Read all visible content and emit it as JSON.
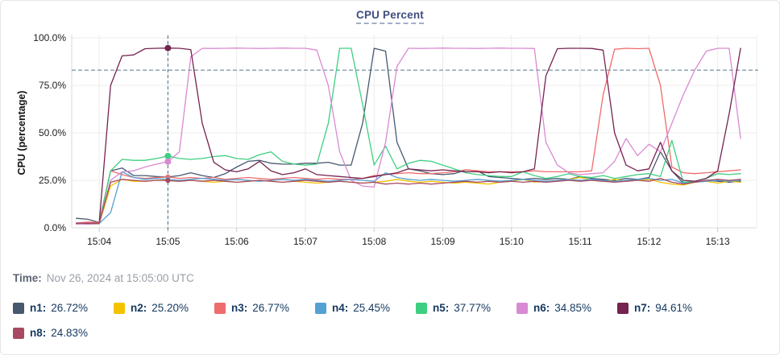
{
  "title": "CPU Percent",
  "tooltip": {
    "time_label": "Time:",
    "time_value": "Nov 26, 2024 at 15:05:00 UTC"
  },
  "colors": {
    "title": "#3f4e7d",
    "threshold": "#53788e",
    "crosshair": "#53788e",
    "grid": "#ececec",
    "axis": "#d9d9d9",
    "tick_mark": "#cbcbcb",
    "tick_text": "#1c1c1c",
    "axis_title_text": "#111111",
    "legend_text": "#163a61"
  },
  "chart_data": {
    "type": "line",
    "title": "CPU Percent",
    "xlabel": "",
    "ylabel": "CPU (percentage)",
    "ylim": [
      0,
      100
    ],
    "grid": true,
    "legend_position": "bottom",
    "y_tick_values": [
      0,
      25,
      50,
      75,
      100
    ],
    "y_tick_labels": [
      "0.0%",
      "25.0%",
      "50.0%",
      "75.0%",
      "100.0%"
    ],
    "x_tick_labels": [
      "15:04",
      "15:05",
      "15:06",
      "15:07",
      "15:08",
      "15:09",
      "15:10",
      "15:11",
      "15:12",
      "15:13"
    ],
    "x_domain": [
      "15:03:36",
      "15:13:34"
    ],
    "start_time": "15:03:40",
    "interval_seconds": 10,
    "threshold_value": 83,
    "crosshair_time": "15:05:00",
    "series": [
      {
        "name": "n1",
        "color": "#47586f",
        "emphasis": false,
        "values": [
          5,
          4.5,
          2.8,
          30,
          31.5,
          27.5,
          27.5,
          27,
          26.72,
          27.5,
          29,
          27.5,
          26.5,
          28.5,
          32,
          35,
          35.5,
          34,
          33.5,
          33.5,
          34,
          34,
          34.5,
          33,
          33,
          55,
          94.5,
          93,
          45,
          31,
          30,
          28.5,
          28,
          28.5,
          30.5,
          30,
          27,
          26.5,
          26,
          25.5,
          26,
          25.5,
          26,
          25.5,
          27,
          26,
          25.5,
          25,
          26,
          25.5,
          26.5,
          40,
          30,
          23.5,
          24,
          25,
          24.5,
          24,
          24.5
        ]
      },
      {
        "name": "n2",
        "color": "#f4c300",
        "emphasis": false,
        "values": [
          2,
          2.2,
          2,
          22,
          25.5,
          24.5,
          24.5,
          25,
          25.2,
          24.5,
          25,
          24.5,
          24,
          24.5,
          24,
          24.5,
          25,
          24.5,
          24,
          24.5,
          24,
          23.5,
          24,
          24.5,
          24,
          23.5,
          24,
          24.5,
          25.5,
          24.5,
          24,
          24.5,
          24,
          23.5,
          24,
          23.5,
          23,
          24,
          24.5,
          25.5,
          24,
          24.5,
          25,
          25.5,
          26.5,
          25,
          24.5,
          25.5,
          24.5,
          25,
          25.5,
          24,
          23,
          22.5,
          24,
          24.5,
          23.5,
          24.5,
          24
        ]
      },
      {
        "name": "n3",
        "color": "#ee6c6c",
        "emphasis": false,
        "values": [
          2.5,
          3,
          2.8,
          30,
          28,
          26.5,
          26,
          26.5,
          26.77,
          26,
          26.5,
          26,
          26.5,
          25.5,
          26,
          26.5,
          26,
          25.5,
          26,
          26.5,
          26,
          25.5,
          26,
          25.5,
          25.5,
          26,
          27.5,
          28,
          28.5,
          29,
          28.5,
          28.5,
          29,
          29.5,
          30.5,
          30,
          29.5,
          29.5,
          29.5,
          29.5,
          30,
          29.5,
          29.5,
          29.5,
          29.5,
          30,
          70,
          94,
          94.5,
          94.3,
          94.5,
          75,
          32,
          29,
          28.5,
          29,
          29.5,
          30,
          30.5
        ]
      },
      {
        "name": "n4",
        "color": "#55a1d3",
        "emphasis": false,
        "values": [
          2.2,
          2.4,
          2.3,
          8,
          29.5,
          26.5,
          25.5,
          26,
          25.45,
          25,
          25.5,
          26,
          25.5,
          25,
          25.5,
          25,
          24.5,
          25,
          25.5,
          25,
          25.5,
          25,
          24.5,
          25,
          25.5,
          25,
          24.5,
          29,
          26.5,
          25.5,
          25,
          25.5,
          25,
          24.5,
          25,
          25.5,
          25,
          24.5,
          25,
          25.5,
          25,
          24.5,
          25,
          25.5,
          25,
          25.5,
          25,
          24.5,
          25,
          25.5,
          26,
          25,
          25.5,
          23.5,
          24,
          24.5,
          25,
          24.5,
          25
        ]
      },
      {
        "name": "n5",
        "color": "#3ecf81",
        "emphasis": true,
        "values": [
          2,
          2.2,
          2.1,
          30,
          36,
          35.5,
          35.5,
          36.5,
          37.77,
          36.5,
          36,
          36.5,
          37.5,
          38,
          36.5,
          36,
          38.5,
          40,
          35,
          33.5,
          33,
          33.5,
          55,
          94.5,
          94.5,
          65,
          33,
          43,
          31,
          34,
          35.5,
          35,
          33,
          31,
          29,
          28,
          27.5,
          27,
          27,
          29.5,
          27.5,
          26,
          27,
          28.5,
          27,
          26.5,
          27.5,
          26,
          27,
          28,
          28.5,
          27,
          46,
          24,
          24.5,
          26,
          28.5,
          28,
          28.5
        ]
      },
      {
        "name": "n6",
        "color": "#d98ad2",
        "emphasis": true,
        "values": [
          2,
          2,
          2.2,
          25,
          29.5,
          30,
          32,
          33.5,
          34.85,
          40,
          90,
          94.5,
          94.4,
          94.5,
          94.6,
          94.5,
          94.4,
          94.5,
          94.6,
          94.5,
          94.5,
          93.5,
          75,
          40,
          25,
          22,
          21.5,
          45,
          85,
          94.5,
          94.4,
          94.5,
          94.6,
          94.5,
          94.5,
          94.4,
          94.5,
          94.6,
          94.5,
          94.5,
          94.4,
          45,
          33,
          29,
          28,
          28.5,
          29,
          35,
          47,
          38,
          44,
          40,
          55,
          70,
          83,
          93,
          94.5,
          94.5,
          47
        ]
      },
      {
        "name": "n7",
        "color": "#75234f",
        "emphasis": true,
        "values": [
          2.5,
          2.3,
          2.4,
          75,
          90.5,
          91,
          94.3,
          94.5,
          94.61,
          94.5,
          93.8,
          55,
          34.5,
          30.5,
          29.5,
          31,
          35,
          30,
          28,
          29,
          31,
          28,
          27.5,
          27,
          26.5,
          26,
          27,
          28,
          29,
          31,
          30.5,
          30,
          30.5,
          30,
          29.5,
          29.5,
          29,
          29.5,
          29,
          29.5,
          31,
          80,
          94.3,
          94.5,
          94.5,
          94.4,
          93.5,
          50,
          33,
          30,
          31,
          45,
          30,
          25,
          24.5,
          26,
          30,
          60,
          94.5
        ]
      },
      {
        "name": "n8",
        "color": "#a84a63",
        "emphasis": false,
        "values": [
          2.3,
          2.5,
          2.4,
          24,
          25.5,
          25,
          24.5,
          25,
          24.83,
          24.5,
          25,
          24.5,
          25,
          24.5,
          24,
          24.5,
          25,
          24.5,
          24,
          24.5,
          25,
          24.5,
          24,
          24.5,
          24,
          23.5,
          24,
          23,
          23.5,
          23,
          23.5,
          23,
          23.5,
          24,
          24.5,
          24,
          24.5,
          24,
          24.5,
          24,
          24.5,
          24,
          24.5,
          25,
          24.5,
          25,
          24.5,
          24,
          24.5,
          25,
          24.5,
          26,
          24,
          23,
          24,
          25,
          25.5,
          25,
          25.5
        ]
      }
    ],
    "crosshair_values": {
      "n1": "26.72%",
      "n2": "25.20%",
      "n3": "26.77%",
      "n4": "25.45%",
      "n5": "37.77%",
      "n6": "34.85%",
      "n7": "94.61%",
      "n8": "24.83%"
    }
  },
  "legend": {
    "items": [
      {
        "name": "n1",
        "label": "n1:",
        "value": "26.72%",
        "color": "#47586f"
      },
      {
        "name": "n2",
        "label": "n2:",
        "value": "25.20%",
        "color": "#f4c300"
      },
      {
        "name": "n3",
        "label": "n3:",
        "value": "26.77%",
        "color": "#ee6c6c"
      },
      {
        "name": "n4",
        "label": "n4:",
        "value": "25.45%",
        "color": "#55a1d3"
      },
      {
        "name": "n5",
        "label": "n5:",
        "value": "37.77%",
        "color": "#3ecf81"
      },
      {
        "name": "n6",
        "label": "n6:",
        "value": "34.85%",
        "color": "#d98ad2"
      },
      {
        "name": "n7",
        "label": "n7:",
        "value": "94.61%",
        "color": "#75234f"
      },
      {
        "name": "n8",
        "label": "n8:",
        "value": "24.83%",
        "color": "#a84a63"
      }
    ]
  }
}
